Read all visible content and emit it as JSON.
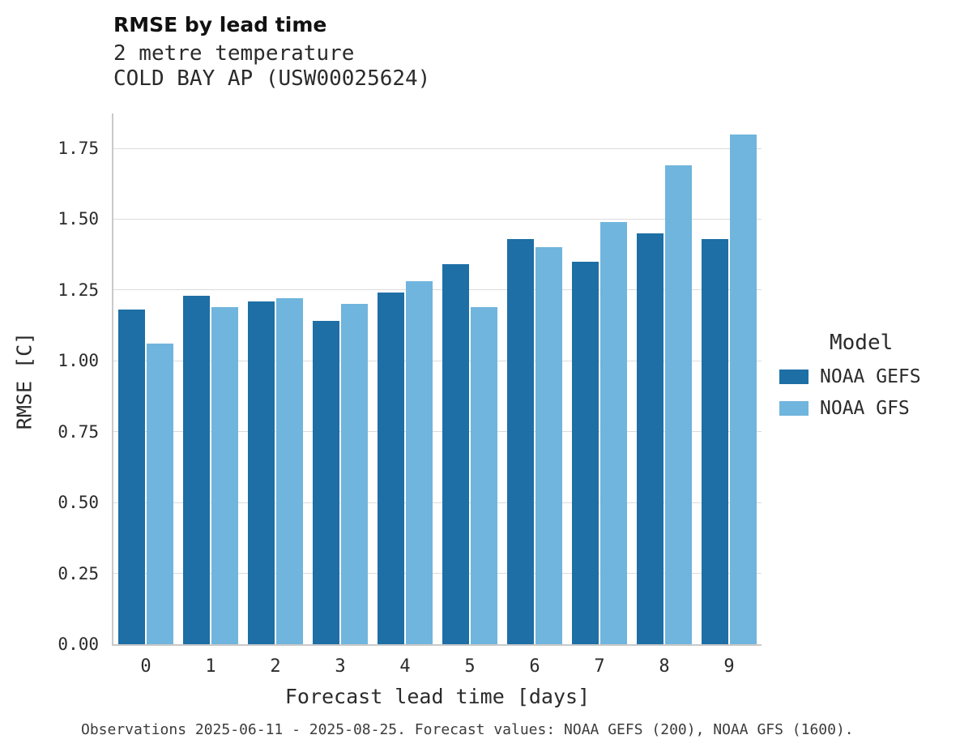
{
  "title": "RMSE by lead time",
  "subtitle": "2 metre temperature\nCOLD BAY AP (USW00025624)",
  "footer": "Observations 2025-06-11 - 2025-08-25. Forecast values: NOAA GEFS (200), NOAA GFS (1600).",
  "legend": {
    "title": "Model",
    "entries": [
      {
        "label": "NOAA GEFS",
        "color": "#1d6fa5"
      },
      {
        "label": "NOAA GFS",
        "color": "#70b5dd"
      }
    ]
  },
  "chart_data": {
    "type": "bar",
    "title": "RMSE by lead time",
    "subtitle": [
      "2 metre temperature",
      "COLD BAY AP (USW00025624)"
    ],
    "xlabel": "Forecast lead time [days]",
    "ylabel": "RMSE [C]",
    "categories": [
      "0",
      "1",
      "2",
      "3",
      "4",
      "5",
      "6",
      "7",
      "8",
      "9"
    ],
    "series": [
      {
        "name": "NOAA GEFS",
        "color": "#1d6fa5",
        "values": [
          1.18,
          1.23,
          1.21,
          1.14,
          1.24,
          1.34,
          1.43,
          1.35,
          1.45,
          1.43
        ]
      },
      {
        "name": "NOAA GFS",
        "color": "#70b5dd",
        "values": [
          1.06,
          1.19,
          1.22,
          1.2,
          1.28,
          1.19,
          1.4,
          1.49,
          1.69,
          1.8
        ]
      }
    ],
    "yticks": [
      0.0,
      0.25,
      0.5,
      0.75,
      1.0,
      1.25,
      1.5,
      1.75
    ],
    "ytick_labels": [
      "0.00",
      "0.25",
      "0.50",
      "0.75",
      "1.00",
      "1.25",
      "1.50",
      "1.75"
    ],
    "ylim": [
      0,
      1.873
    ],
    "grid": true,
    "legend_position": "right",
    "legend_title": "Model"
  }
}
